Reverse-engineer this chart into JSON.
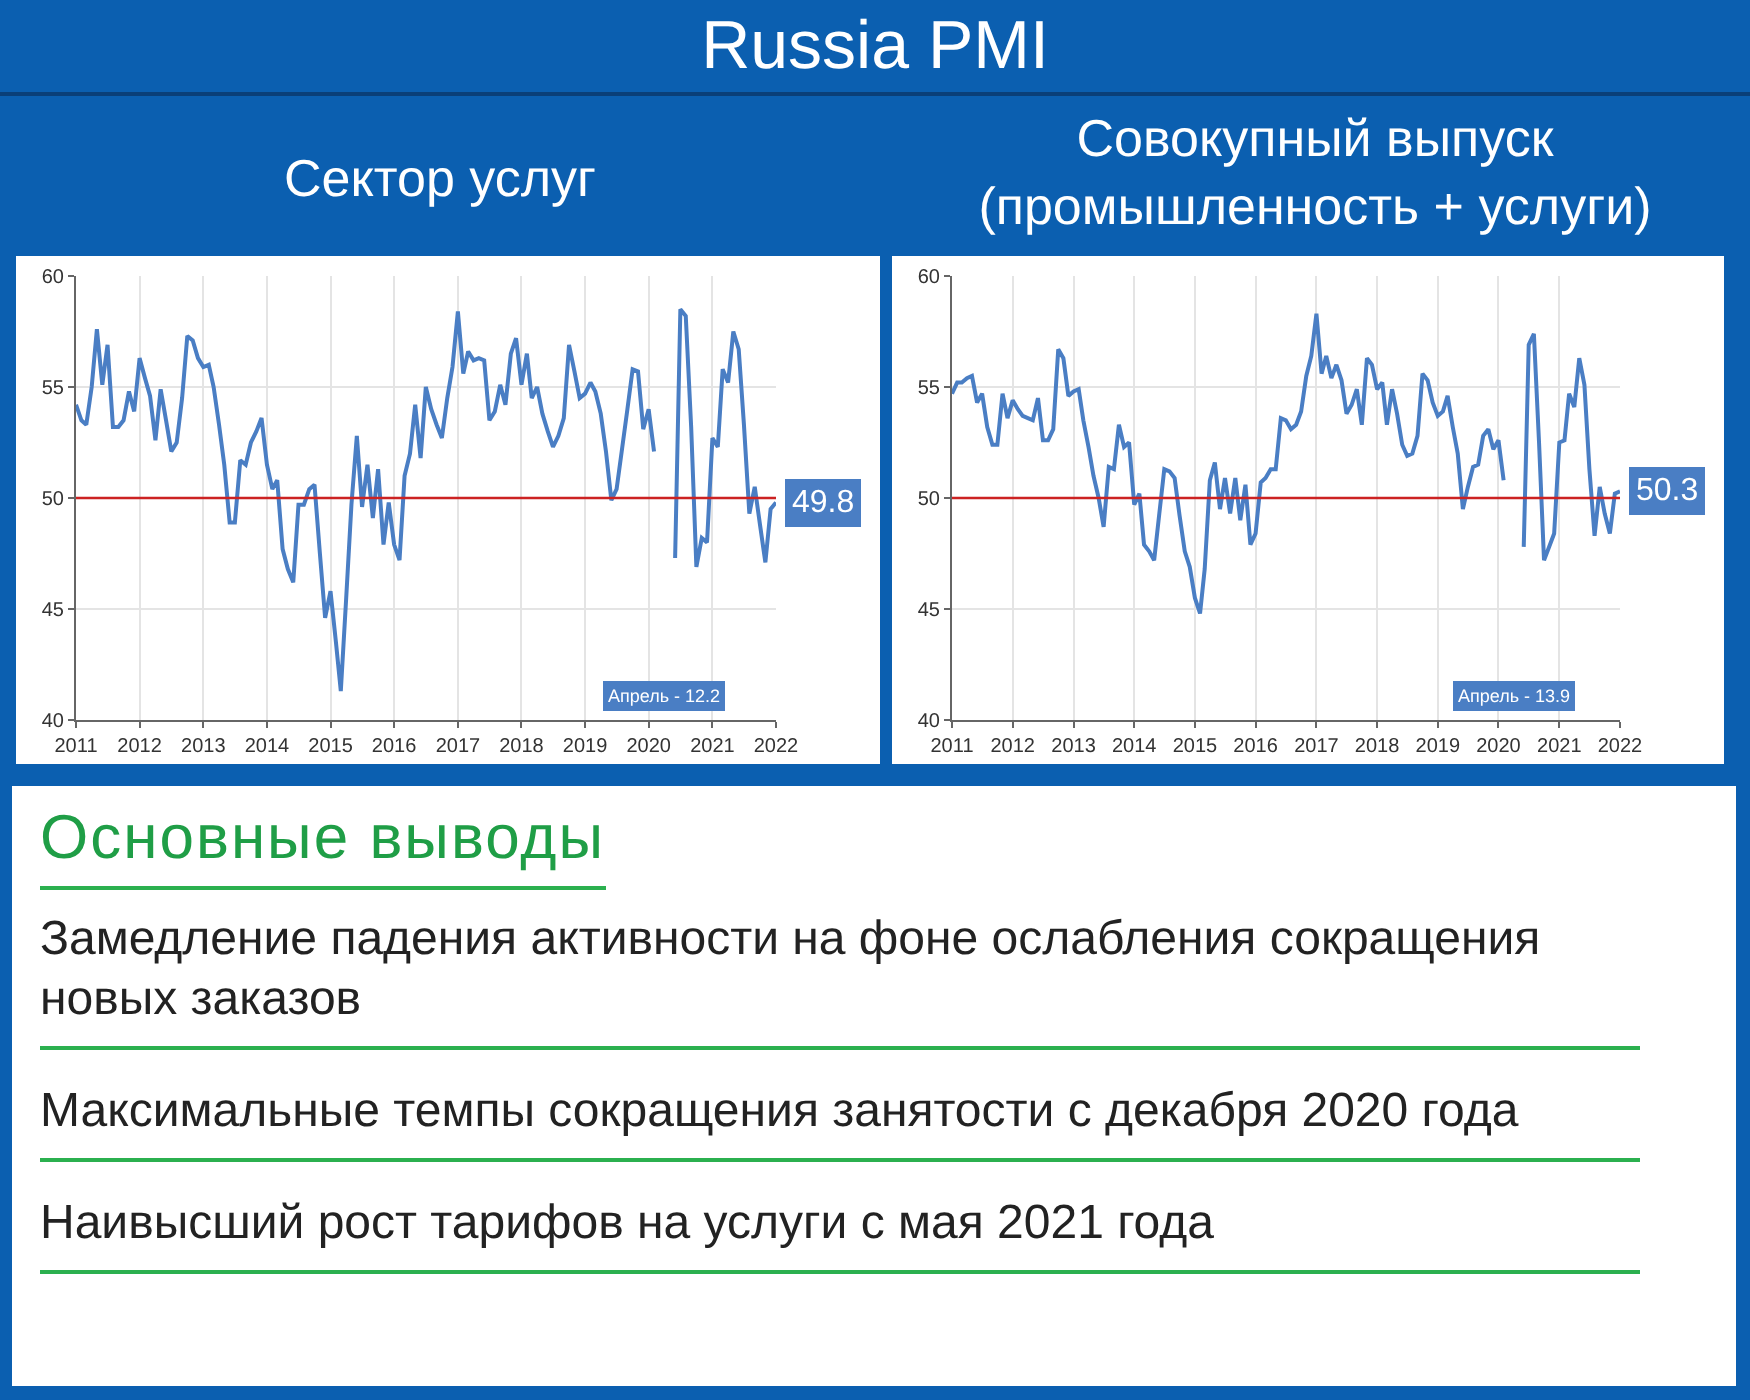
{
  "chart_data": [
    {
      "type": "other",
      "title": "Russia PMI"
    },
    {
      "type": "line",
      "title": "Сектор услуг",
      "color": "#4a7ec4",
      "grid": true,
      "xlim": [
        "2011-01",
        "2022-01"
      ],
      "xticks": [
        "2011",
        "2012",
        "2013",
        "2014",
        "2015",
        "2016",
        "2017",
        "2018",
        "2019",
        "2020",
        "2021",
        "2022"
      ],
      "ylim": [
        40,
        60
      ],
      "yticks": [
        40,
        45,
        50,
        55,
        60
      ],
      "ref_lines": [
        {
          "axis": "y",
          "value": 50,
          "color": "#cc2222"
        }
      ],
      "annotations": [
        "Апрель - 12.2"
      ],
      "x": [
        "2011-01",
        "2011-02",
        "2011-03",
        "2011-04",
        "2011-05",
        "2011-06",
        "2011-07",
        "2011-08",
        "2011-09",
        "2011-10",
        "2011-11",
        "2011-12",
        "2012-01",
        "2012-02",
        "2012-03",
        "2012-04",
        "2012-05",
        "2012-06",
        "2012-07",
        "2012-08",
        "2012-09",
        "2012-10",
        "2012-11",
        "2012-12",
        "2013-01",
        "2013-02",
        "2013-03",
        "2013-04",
        "2013-05",
        "2013-06",
        "2013-07",
        "2013-08",
        "2013-09",
        "2013-10",
        "2013-11",
        "2013-12",
        "2014-01",
        "2014-02",
        "2014-03",
        "2014-04",
        "2014-05",
        "2014-06",
        "2014-07",
        "2014-08",
        "2014-09",
        "2014-10",
        "2014-11",
        "2014-12",
        "2015-01",
        "2015-02",
        "2015-03",
        "2015-04",
        "2015-05",
        "2015-06",
        "2015-07",
        "2015-08",
        "2015-09",
        "2015-10",
        "2015-11",
        "2015-12",
        "2016-01",
        "2016-02",
        "2016-03",
        "2016-04",
        "2016-05",
        "2016-06",
        "2016-07",
        "2016-08",
        "2016-09",
        "2016-10",
        "2016-11",
        "2016-12",
        "2017-01",
        "2017-02",
        "2017-03",
        "2017-04",
        "2017-05",
        "2017-06",
        "2017-07",
        "2017-08",
        "2017-09",
        "2017-10",
        "2017-11",
        "2017-12",
        "2018-01",
        "2018-02",
        "2018-03",
        "2018-04",
        "2018-05",
        "2018-06",
        "2018-07",
        "2018-08",
        "2018-09",
        "2018-10",
        "2018-11",
        "2018-12",
        "2019-01",
        "2019-02",
        "2019-03",
        "2019-04",
        "2019-05",
        "2019-06",
        "2019-07",
        "2019-08",
        "2019-09",
        "2019-10",
        "2019-11",
        "2019-12",
        "2020-01",
        "2020-02",
        "2020-03",
        "2020-04",
        "2020-05",
        "2020-06",
        "2020-07",
        "2020-08",
        "2020-09",
        "2020-10",
        "2020-11",
        "2020-12",
        "2021-01",
        "2021-02",
        "2021-03",
        "2021-04",
        "2021-05",
        "2021-06",
        "2021-07",
        "2021-08",
        "2021-09",
        "2021-10",
        "2021-11",
        "2021-12",
        "2022-01"
      ],
      "values": [
        54.2,
        53.5,
        53.3,
        55.0,
        57.6,
        55.1,
        56.9,
        53.2,
        53.2,
        53.5,
        54.8,
        53.9,
        56.3,
        55.4,
        54.6,
        52.6,
        54.9,
        53.5,
        52.1,
        52.5,
        54.5,
        57.3,
        57.1,
        56.3,
        55.9,
        56.0,
        55.0,
        53.3,
        51.5,
        48.9,
        48.9,
        51.7,
        51.5,
        52.5,
        53.0,
        53.6,
        51.5,
        50.4,
        50.8,
        47.7,
        46.8,
        46.2,
        49.7,
        49.7,
        50.4,
        50.6,
        47.5,
        44.6,
        45.8,
        43.5,
        41.3,
        45.5,
        49.7,
        52.8,
        49.6,
        51.5,
        49.1,
        51.3,
        47.9,
        49.8,
        47.9,
        47.2,
        51.0,
        52.0,
        54.2,
        51.8,
        55.0,
        54.0,
        53.3,
        52.7,
        54.5,
        55.9,
        58.4,
        55.6,
        56.6,
        56.2,
        56.3,
        56.2,
        53.5,
        53.9,
        55.1,
        54.2,
        56.5,
        57.2,
        55.1,
        56.5,
        54.5,
        55.0,
        53.8,
        53.0,
        52.3,
        52.8,
        53.6,
        56.9,
        55.7,
        54.5,
        54.7,
        55.2,
        54.8,
        53.8,
        52.1,
        49.9,
        50.4,
        52.2,
        54.0,
        55.8,
        55.7,
        53.1,
        54.0,
        52.1,
        null,
        null,
        null,
        47.3,
        58.5,
        58.2,
        53.2,
        46.9,
        48.2,
        48.0,
        52.7,
        52.3,
        55.8,
        55.2,
        57.5,
        56.7,
        53.3,
        49.3,
        50.5,
        48.8,
        47.1,
        49.5,
        49.8
      ],
      "value_labels": [
        null,
        null,
        null,
        null,
        null,
        null,
        null,
        null,
        null,
        null,
        null,
        null,
        null,
        null,
        null,
        null,
        null,
        null,
        null,
        null,
        null,
        null,
        null,
        null,
        null,
        null,
        null,
        null,
        null,
        null,
        null,
        null,
        null,
        null,
        null,
        null,
        null,
        null,
        null,
        null,
        null,
        null,
        null,
        null,
        null,
        null,
        null,
        null,
        null,
        null,
        null,
        null,
        null,
        null,
        null,
        null,
        null,
        null,
        null,
        null,
        null,
        null,
        null,
        null,
        null,
        null,
        null,
        null,
        null,
        null,
        null,
        null,
        null,
        null,
        null,
        null,
        null,
        null,
        null,
        null,
        null,
        null,
        null,
        null,
        null,
        null,
        null,
        null,
        null,
        null,
        null,
        null,
        null,
        null,
        null,
        null,
        null,
        null,
        null,
        null,
        null,
        null,
        null,
        null,
        null,
        null,
        null,
        null,
        null,
        null,
        null,
        null,
        null,
        null,
        null,
        null,
        null,
        null,
        null,
        null,
        null,
        null,
        null,
        null,
        null,
        null,
        null,
        null,
        null,
        null,
        null,
        null,
        "49.8"
      ]
    },
    {
      "type": "line",
      "title": "Совокупный выпуск\n(промышленность + услуги)",
      "color": "#4a7ec4",
      "grid": true,
      "xlim": [
        "2011-01",
        "2022-01"
      ],
      "xticks": [
        "2011",
        "2012",
        "2013",
        "2014",
        "2015",
        "2016",
        "2017",
        "2018",
        "2019",
        "2020",
        "2021",
        "2022"
      ],
      "ylim": [
        40,
        60
      ],
      "yticks": [
        40,
        45,
        50,
        55,
        60
      ],
      "ref_lines": [
        {
          "axis": "y",
          "value": 50,
          "color": "#cc2222"
        }
      ],
      "annotations": [
        "Апрель - 13.9"
      ],
      "x": [
        "2011-01",
        "2011-02",
        "2011-03",
        "2011-04",
        "2011-05",
        "2011-06",
        "2011-07",
        "2011-08",
        "2011-09",
        "2011-10",
        "2011-11",
        "2011-12",
        "2012-01",
        "2012-02",
        "2012-03",
        "2012-04",
        "2012-05",
        "2012-06",
        "2012-07",
        "2012-08",
        "2012-09",
        "2012-10",
        "2012-11",
        "2012-12",
        "2013-01",
        "2013-02",
        "2013-03",
        "2013-04",
        "2013-05",
        "2013-06",
        "2013-07",
        "2013-08",
        "2013-09",
        "2013-10",
        "2013-11",
        "2013-12",
        "2014-01",
        "2014-02",
        "2014-03",
        "2014-04",
        "2014-05",
        "2014-06",
        "2014-07",
        "2014-08",
        "2014-09",
        "2014-10",
        "2014-11",
        "2014-12",
        "2015-01",
        "2015-02",
        "2015-03",
        "2015-04",
        "2015-05",
        "2015-06",
        "2015-07",
        "2015-08",
        "2015-09",
        "2015-10",
        "2015-11",
        "2015-12",
        "2016-01",
        "2016-02",
        "2016-03",
        "2016-04",
        "2016-05",
        "2016-06",
        "2016-07",
        "2016-08",
        "2016-09",
        "2016-10",
        "2016-11",
        "2016-12",
        "2017-01",
        "2017-02",
        "2017-03",
        "2017-04",
        "2017-05",
        "2017-06",
        "2017-07",
        "2017-08",
        "2017-09",
        "2017-10",
        "2017-11",
        "2017-12",
        "2018-01",
        "2018-02",
        "2018-03",
        "2018-04",
        "2018-05",
        "2018-06",
        "2018-07",
        "2018-08",
        "2018-09",
        "2018-10",
        "2018-11",
        "2018-12",
        "2019-01",
        "2019-02",
        "2019-03",
        "2019-04",
        "2019-05",
        "2019-06",
        "2019-07",
        "2019-08",
        "2019-09",
        "2019-10",
        "2019-11",
        "2019-12",
        "2020-01",
        "2020-02",
        "2020-03",
        "2020-04",
        "2020-05",
        "2020-06",
        "2020-07",
        "2020-08",
        "2020-09",
        "2020-10",
        "2020-11",
        "2020-12",
        "2021-01",
        "2021-02",
        "2021-03",
        "2021-04",
        "2021-05",
        "2021-06",
        "2021-07",
        "2021-08",
        "2021-09",
        "2021-10",
        "2021-11",
        "2021-12",
        "2022-01"
      ],
      "values": [
        54.7,
        55.2,
        55.2,
        55.4,
        55.5,
        54.3,
        54.7,
        53.2,
        52.4,
        52.4,
        54.7,
        53.6,
        54.4,
        54.0,
        53.7,
        53.6,
        53.5,
        54.5,
        52.6,
        52.6,
        53.1,
        56.7,
        56.3,
        54.6,
        54.8,
        54.9,
        53.5,
        52.3,
        51.0,
        50.0,
        48.7,
        51.4,
        51.3,
        53.3,
        52.3,
        52.5,
        49.7,
        50.2,
        47.9,
        47.6,
        47.2,
        49.3,
        51.3,
        51.2,
        50.9,
        49.2,
        47.6,
        46.9,
        45.5,
        44.8,
        46.8,
        50.8,
        51.6,
        49.5,
        50.9,
        49.3,
        50.9,
        49.0,
        50.6,
        47.9,
        48.4,
        50.7,
        50.9,
        51.3,
        51.3,
        53.6,
        53.5,
        53.1,
        53.3,
        53.9,
        55.5,
        56.4,
        58.3,
        55.6,
        56.4,
        55.4,
        56.0,
        55.3,
        53.8,
        54.2,
        54.9,
        53.3,
        56.3,
        56.0,
        54.9,
        55.2,
        53.3,
        54.9,
        53.8,
        52.4,
        51.9,
        52.0,
        52.8,
        55.6,
        55.3,
        54.3,
        53.7,
        53.9,
        54.6,
        53.2,
        52.0,
        49.5,
        50.5,
        51.4,
        51.5,
        52.8,
        53.1,
        52.2,
        52.6,
        50.8,
        null,
        null,
        null,
        47.8,
        56.9,
        57.4,
        52.5,
        47.2,
        47.8,
        48.4,
        52.5,
        52.6,
        54.7,
        54.1,
        56.3,
        55.1,
        51.3,
        48.3,
        50.5,
        49.3,
        48.4,
        50.2,
        50.3
      ],
      "value_labels": [
        null,
        null,
        null,
        null,
        null,
        null,
        null,
        null,
        null,
        null,
        null,
        null,
        null,
        null,
        null,
        null,
        null,
        null,
        null,
        null,
        null,
        null,
        null,
        null,
        null,
        null,
        null,
        null,
        null,
        null,
        null,
        null,
        null,
        null,
        null,
        null,
        null,
        null,
        null,
        null,
        null,
        null,
        null,
        null,
        null,
        null,
        null,
        null,
        null,
        null,
        null,
        null,
        null,
        null,
        null,
        null,
        null,
        null,
        null,
        null,
        null,
        null,
        null,
        null,
        null,
        null,
        null,
        null,
        null,
        null,
        null,
        null,
        null,
        null,
        null,
        null,
        null,
        null,
        null,
        null,
        null,
        null,
        null,
        null,
        null,
        null,
        null,
        null,
        null,
        null,
        null,
        null,
        null,
        null,
        null,
        null,
        null,
        null,
        null,
        null,
        null,
        null,
        null,
        null,
        null,
        null,
        null,
        null,
        null,
        null,
        null,
        null,
        null,
        null,
        null,
        null,
        null,
        null,
        null,
        null,
        null,
        null,
        null,
        null,
        null,
        null,
        null,
        null,
        null,
        null,
        null,
        null,
        "50.3"
      ]
    },
    {
      "type": "other",
      "title": "Основные выводы",
      "annotations": [
        "Замедление падения активности на фоне ослабления сокращения новых заказов",
        "Максимальные темпы сокращения занятости с декабря 2020 года",
        "Наивысший рост тарифов на услуги с мая 2021 года"
      ]
    }
  ]
}
